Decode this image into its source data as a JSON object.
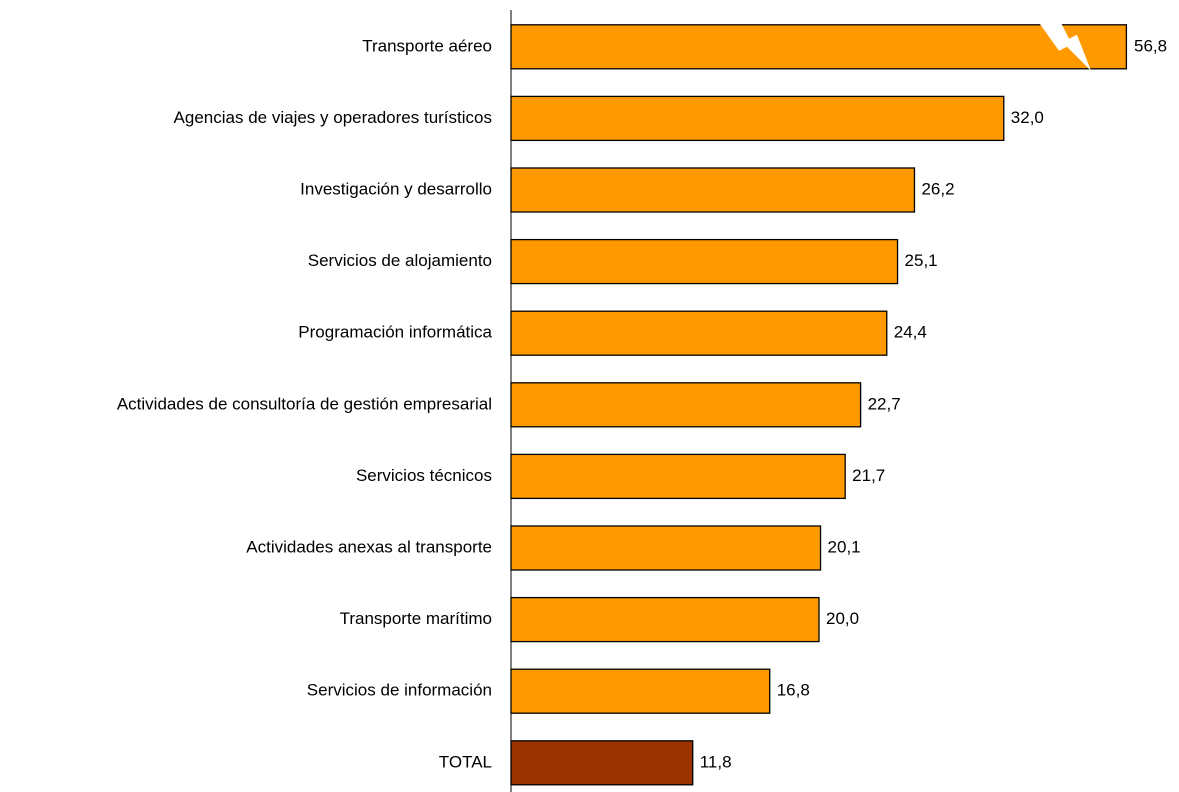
{
  "chart_data": {
    "type": "hbar",
    "categories": [
      "Transporte aéreo",
      "Agencias de viajes y operadores turísticos",
      "Investigación y desarrollo",
      "Servicios de alojamiento",
      "Programación informática",
      "Actividades de consultoría de gestión empresarial",
      "Servicios técnicos",
      "Actividades anexas al transporte",
      "Transporte marítimo",
      "Servicios de información",
      "TOTAL"
    ],
    "values": [
      56.8,
      32.0,
      26.2,
      25.1,
      24.4,
      22.7,
      21.7,
      20.1,
      20.0,
      16.8,
      11.8
    ],
    "value_labels": [
      "56,8",
      "32,0",
      "26,2",
      "25,1",
      "24,4",
      "22,7",
      "21,7",
      "20,1",
      "20,0",
      "16,8",
      "11,8"
    ],
    "colors": [
      "#ff9900",
      "#ff9900",
      "#ff9900",
      "#ff9900",
      "#ff9900",
      "#ff9900",
      "#ff9900",
      "#ff9900",
      "#ff9900",
      "#ff9900",
      "#993300"
    ]
  }
}
